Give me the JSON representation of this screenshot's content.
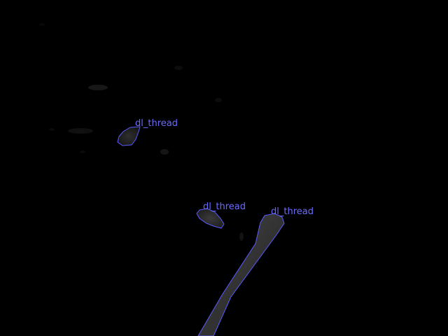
{
  "colors": {
    "background": "#000000",
    "outline": "#5a5aff",
    "label": "#6b6bff",
    "fill_bright": "#4a4a4a",
    "fill_mid": "#2a2a2a",
    "fill_dim": "#161616"
  },
  "detections": [
    {
      "label": "dl_thread"
    },
    {
      "label": "dl_thread"
    },
    {
      "label": "dl_thread"
    }
  ]
}
